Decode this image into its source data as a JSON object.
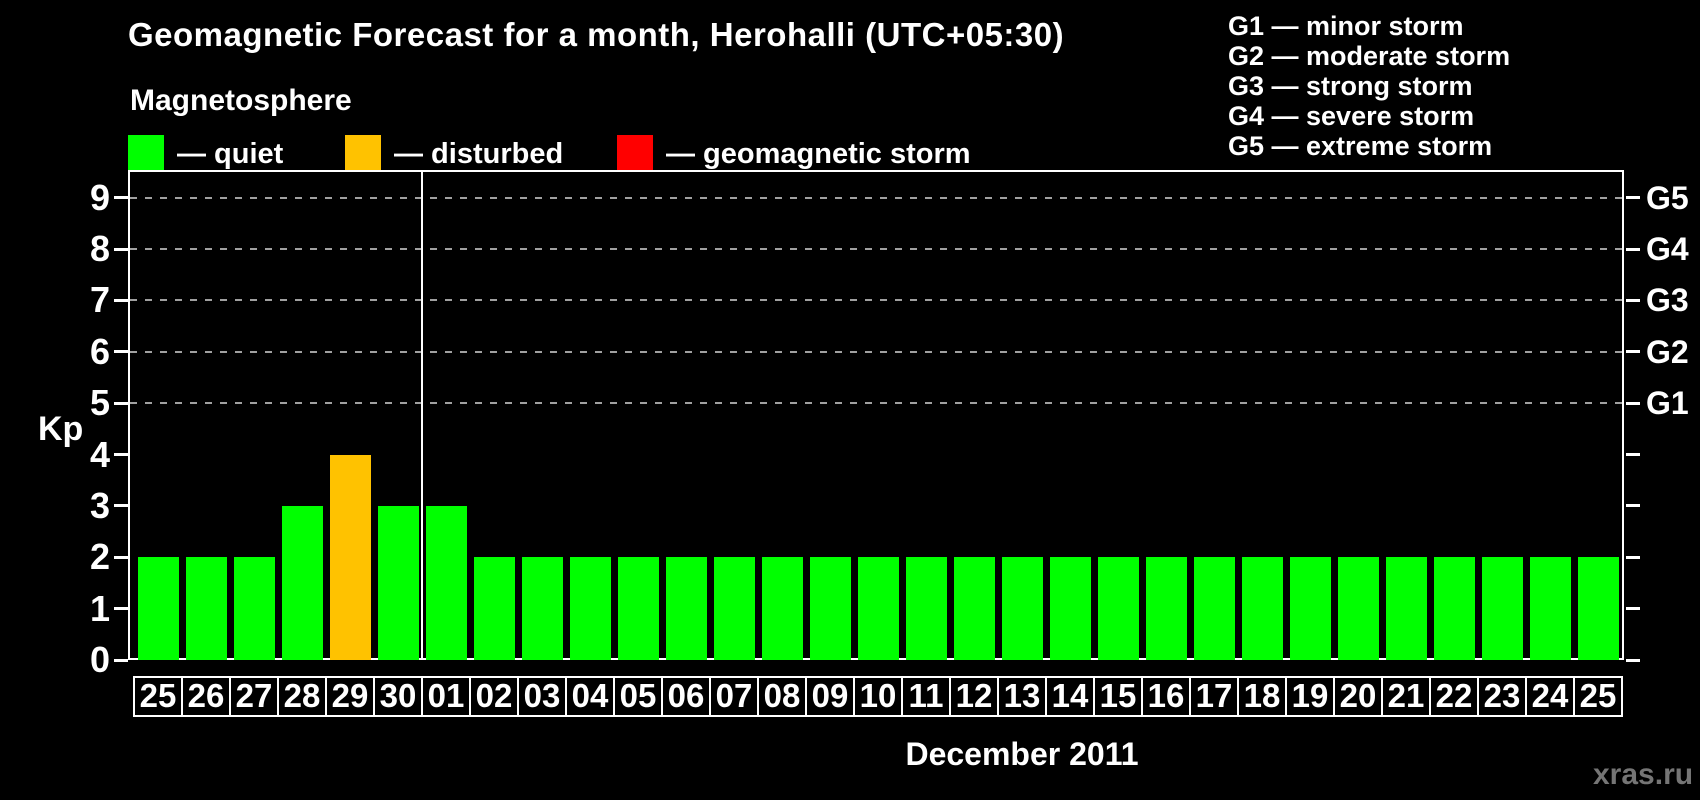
{
  "header": {
    "title": "Geomagnetic Forecast for a month, Herohalli (UTC+05:30)"
  },
  "magnetosphere_legend": {
    "heading": "Magnetosphere",
    "items": [
      {
        "name": "quiet",
        "label": "— quiet",
        "color": "#00ff00"
      },
      {
        "name": "disturbed",
        "label": "— disturbed",
        "color": "#ffc200"
      },
      {
        "name": "geomagnetic-storm",
        "label": "— geomagnetic storm",
        "color": "#ff0000"
      }
    ]
  },
  "storm_scale_legend": {
    "items": [
      {
        "code": "G1",
        "label": "G1 — minor storm"
      },
      {
        "code": "G2",
        "label": "G2 — moderate storm"
      },
      {
        "code": "G3",
        "label": "G3 — strong storm"
      },
      {
        "code": "G4",
        "label": "G4 — severe storm"
      },
      {
        "code": "G5",
        "label": "G5 — extreme storm"
      }
    ]
  },
  "watermark": "xras.ru",
  "chart_data": {
    "type": "bar",
    "title": "Geomagnetic Forecast for a month, Herohalli (UTC+05:30)",
    "xlabel": "December 2011",
    "ylabel": "Kp",
    "ylim": [
      0,
      9.5
    ],
    "yticks": [
      0,
      1,
      2,
      3,
      4,
      5,
      6,
      7,
      8,
      9
    ],
    "gridlines_at": [
      5,
      6,
      7,
      8,
      9
    ],
    "grid_style": "dashed horizontal, gray, only at storm levels 5-9",
    "right_axis": {
      "ticks": [
        0,
        1,
        2,
        3,
        4,
        5,
        6,
        7,
        8,
        9
      ],
      "labels": [
        {
          "value": 5,
          "label": "G1"
        },
        {
          "value": 6,
          "label": "G2"
        },
        {
          "value": 7,
          "label": "G3"
        },
        {
          "value": 8,
          "label": "G4"
        },
        {
          "value": 9,
          "label": "G5"
        }
      ]
    },
    "month_separator_after_index": 5,
    "categories": [
      "25",
      "26",
      "27",
      "28",
      "29",
      "30",
      "01",
      "02",
      "03",
      "04",
      "05",
      "06",
      "07",
      "08",
      "09",
      "10",
      "11",
      "12",
      "13",
      "14",
      "15",
      "16",
      "17",
      "18",
      "19",
      "20",
      "21",
      "22",
      "23",
      "24",
      "25"
    ],
    "values": [
      2,
      2,
      2,
      3,
      4,
      3,
      3,
      2,
      2,
      2,
      2,
      2,
      2,
      2,
      2,
      2,
      2,
      2,
      2,
      2,
      2,
      2,
      2,
      2,
      2,
      2,
      2,
      2,
      2,
      2,
      2
    ],
    "statuses": [
      "quiet",
      "quiet",
      "quiet",
      "quiet",
      "disturbed",
      "quiet",
      "quiet",
      "quiet",
      "quiet",
      "quiet",
      "quiet",
      "quiet",
      "quiet",
      "quiet",
      "quiet",
      "quiet",
      "quiet",
      "quiet",
      "quiet",
      "quiet",
      "quiet",
      "quiet",
      "quiet",
      "quiet",
      "quiet",
      "quiet",
      "quiet",
      "quiet",
      "quiet",
      "quiet",
      "quiet"
    ],
    "status_colors": {
      "quiet": "#00ff00",
      "disturbed": "#ffc200",
      "geomagnetic-storm": "#ff0000"
    },
    "legend_position": "top"
  }
}
